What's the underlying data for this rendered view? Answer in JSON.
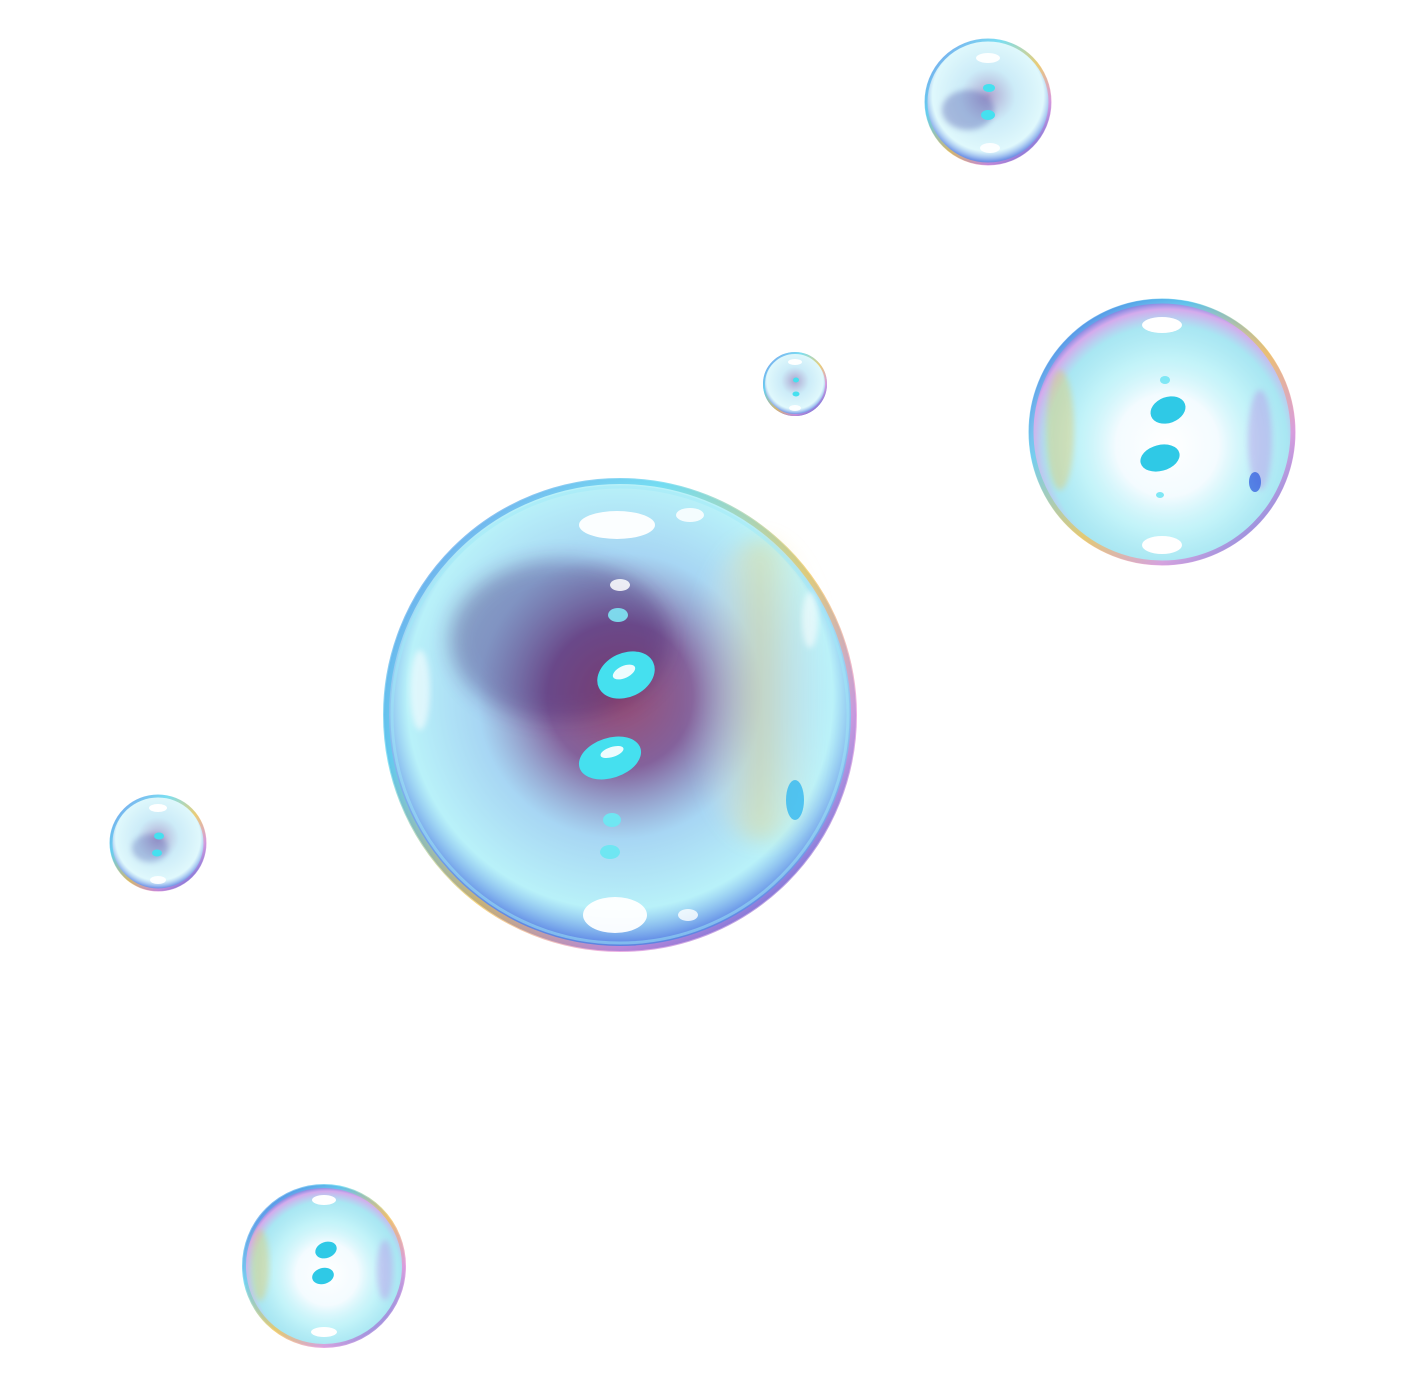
{
  "scene": {
    "background_color": "#ffffff",
    "subject": "soap-bubbles",
    "bubble_count": 6,
    "bubbles": [
      {
        "id": "bubble-large-center",
        "style": "deep",
        "palette": [
          "#4fd8f0",
          "#3a5fd8",
          "#6a1f4a",
          "#f5f0ff"
        ]
      },
      {
        "id": "bubble-top-right",
        "style": "deep",
        "palette": [
          "#4fd8f0",
          "#3a5fd8",
          "#7d6fb8",
          "#f5f0ff"
        ]
      },
      {
        "id": "bubble-right",
        "style": "bright",
        "palette": [
          "#4fd8f0",
          "#ffffff",
          "#f2c84a",
          "#b47ae0"
        ]
      },
      {
        "id": "bubble-small-mid",
        "style": "deep",
        "palette": [
          "#4fd8f0",
          "#3a5fd8",
          "#8a7ab8",
          "#f5f0ff"
        ]
      },
      {
        "id": "bubble-left",
        "style": "deep",
        "palette": [
          "#4fd8f0",
          "#3a5fd8",
          "#7d6fb8",
          "#f5f0ff"
        ]
      },
      {
        "id": "bubble-bottom-left",
        "style": "bright",
        "palette": [
          "#4fd8f0",
          "#ffffff",
          "#f2c84a",
          "#b47ae0"
        ]
      }
    ]
  }
}
